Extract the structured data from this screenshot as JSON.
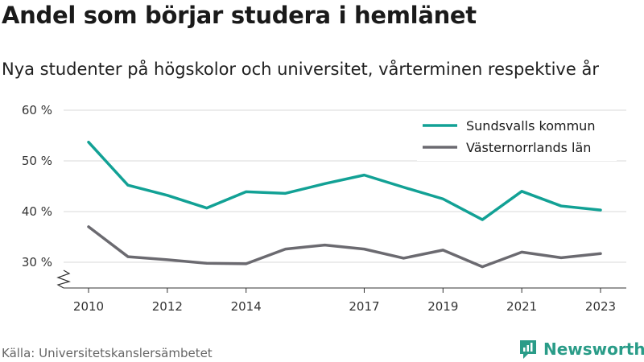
{
  "title": "Andel som börjar studera i hemlänet",
  "subtitle": "Nya studenter på högskolor och universitet, vårterminen respektive år",
  "source": "Källa: Universitetskanslersämbetet",
  "brand": {
    "name": "Newsworthy",
    "color": "#2a9c88"
  },
  "chart_data": {
    "type": "line",
    "x": [
      2010,
      2011,
      2012,
      2013,
      2014,
      2015,
      2016,
      2017,
      2018,
      2019,
      2020,
      2021,
      2022,
      2023
    ],
    "x_ticks": [
      2010,
      2012,
      2014,
      2017,
      2019,
      2021,
      2023
    ],
    "y_ticks": [
      30,
      40,
      50,
      60
    ],
    "y_tick_suffix": " %",
    "ylim": [
      25,
      62
    ],
    "y_axis_break": true,
    "grid": true,
    "legend": "top-right",
    "series": [
      {
        "name": "Sundsvalls kommun",
        "color": "#12a195",
        "values": [
          53.7,
          45.2,
          43.2,
          40.7,
          43.9,
          43.6,
          45.5,
          47.2,
          44.8,
          42.5,
          38.4,
          44.0,
          41.1,
          40.3
        ]
      },
      {
        "name": "Västernorrlands län",
        "color": "#6b6a70",
        "values": [
          37.0,
          31.1,
          30.5,
          29.8,
          29.7,
          32.6,
          33.4,
          32.6,
          30.8,
          32.4,
          29.1,
          32.0,
          30.9,
          31.7
        ]
      }
    ]
  }
}
